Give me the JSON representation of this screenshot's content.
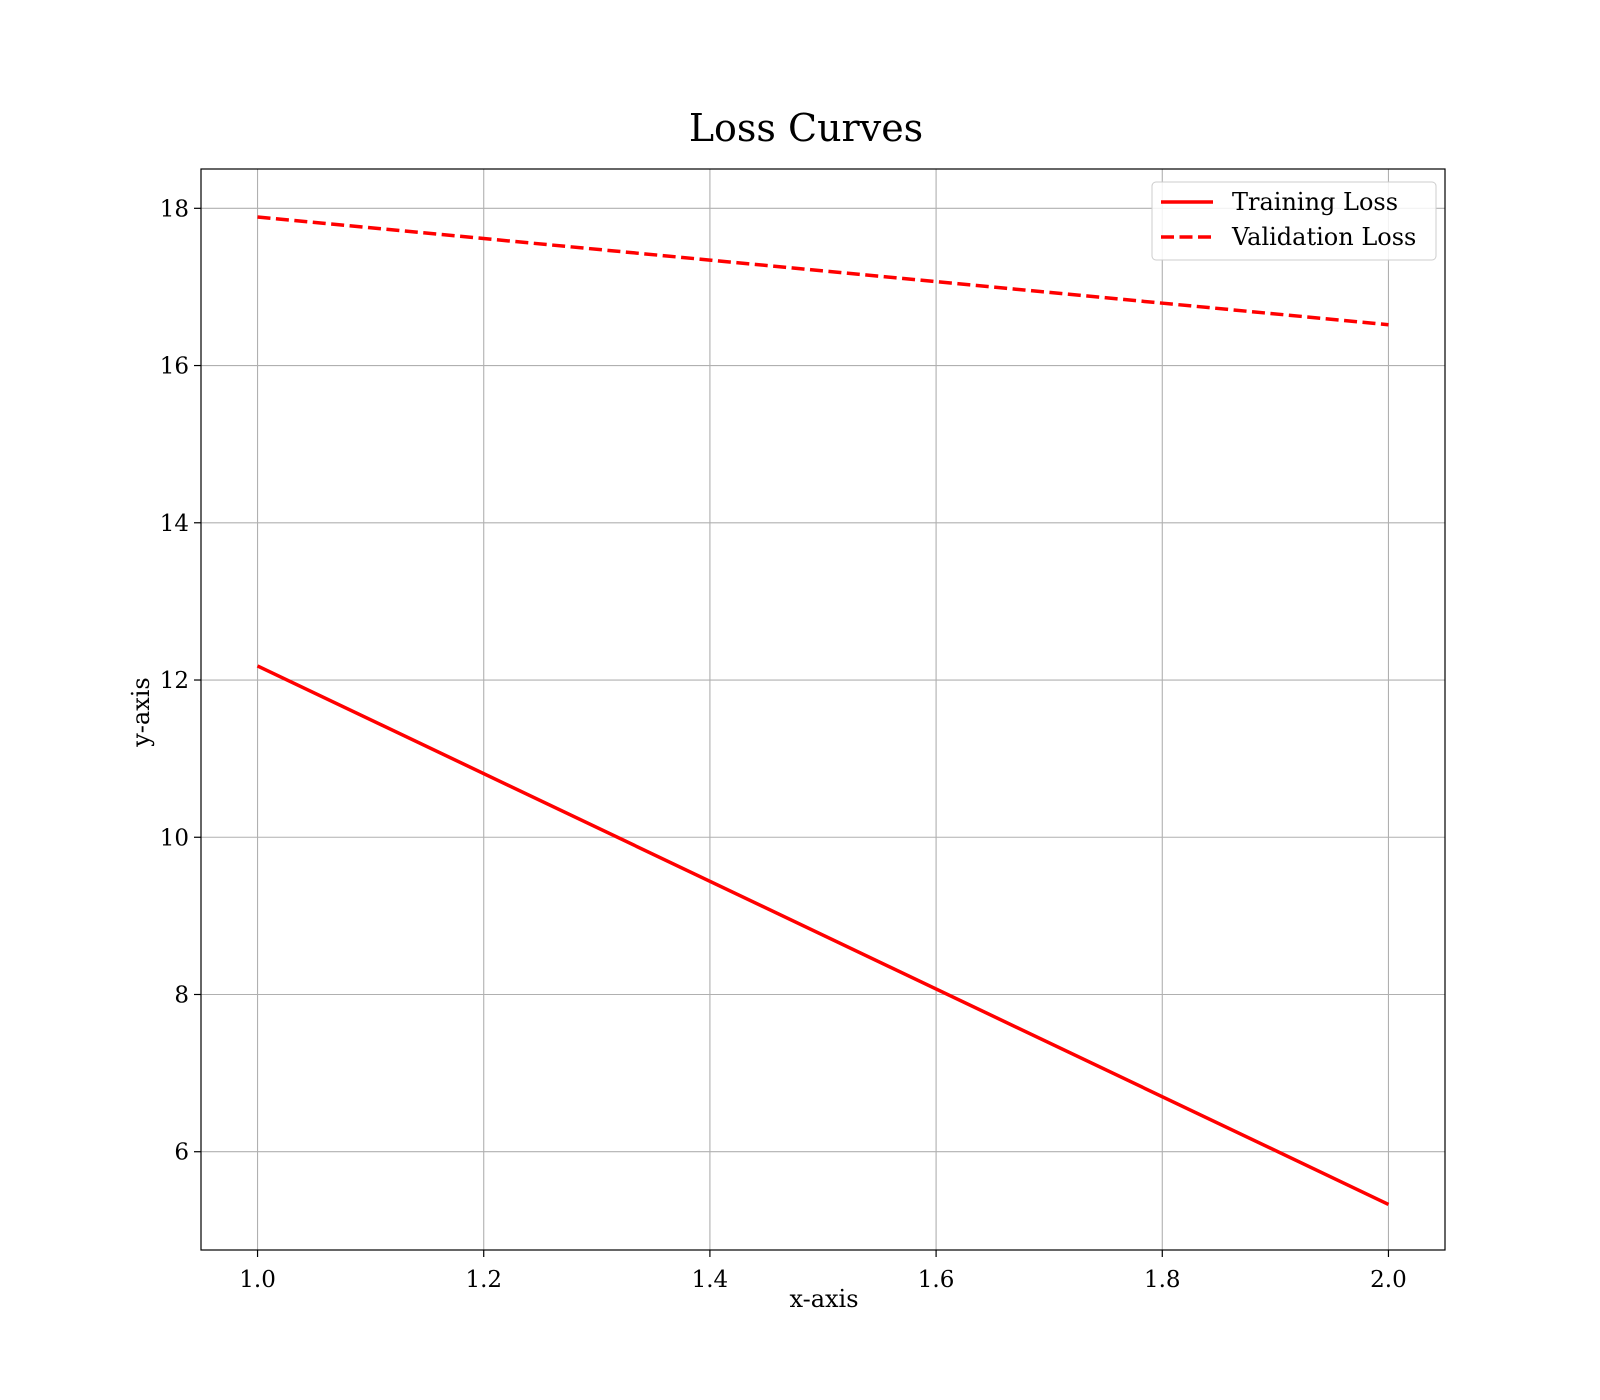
{
  "chart_data": {
    "type": "line",
    "title": "Loss Curves",
    "xlabel": "x-axis",
    "ylabel": "y-axis",
    "xlim": [
      0.95,
      2.05
    ],
    "ylim": [
      4.75,
      18.5
    ],
    "xticks": [
      1.0,
      1.2,
      1.4,
      1.6,
      1.8,
      2.0
    ],
    "xtick_labels": [
      "1.0",
      "1.2",
      "1.4",
      "1.6",
      "1.8",
      "2.0"
    ],
    "yticks": [
      6,
      8,
      10,
      12,
      14,
      16,
      18
    ],
    "ytick_labels": [
      "6",
      "8",
      "10",
      "12",
      "14",
      "16",
      "18"
    ],
    "grid": true,
    "legend_position": "top-right",
    "series": [
      {
        "name": "Training Loss",
        "color": "#ff0000",
        "line_style": "solid",
        "x": [
          1.0,
          2.0
        ],
        "y": [
          12.18,
          5.33
        ]
      },
      {
        "name": "Validation Loss",
        "color": "#ff0000",
        "line_style": "dashed",
        "x": [
          1.0,
          2.0
        ],
        "y": [
          17.89,
          16.52
        ]
      }
    ]
  }
}
